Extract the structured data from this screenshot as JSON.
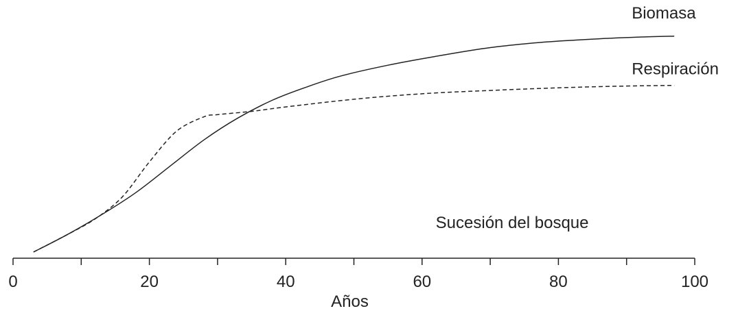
{
  "chart_data": {
    "type": "line",
    "title": "",
    "xlabel": "Años",
    "ylabel": "",
    "xlim": [
      0,
      100
    ],
    "ylim": [
      0,
      100
    ],
    "x_ticks": [
      0,
      20,
      40,
      60,
      80,
      100
    ],
    "x_minor_ticks": [
      10,
      30,
      50,
      70,
      90
    ],
    "grid": false,
    "annotation": "Sucesión del bosque",
    "series": [
      {
        "name": "Biomasa",
        "style": "solid",
        "color": "#222222",
        "points": [
          [
            3,
            0
          ],
          [
            8,
            8
          ],
          [
            13,
            17
          ],
          [
            18,
            27
          ],
          [
            23,
            39
          ],
          [
            28,
            51
          ],
          [
            33,
            61
          ],
          [
            38,
            69
          ],
          [
            43,
            75
          ],
          [
            48,
            80
          ],
          [
            55,
            85
          ],
          [
            62,
            89
          ],
          [
            70,
            93
          ],
          [
            78,
            95.5
          ],
          [
            86,
            97
          ],
          [
            93,
            97.9
          ],
          [
            97,
            98.2
          ]
        ]
      },
      {
        "name": "Respiración",
        "style": "dashed",
        "color": "#222222",
        "points": [
          [
            3,
            0
          ],
          [
            8,
            8
          ],
          [
            12,
            15
          ],
          [
            16,
            25
          ],
          [
            20,
            41
          ],
          [
            24,
            55
          ],
          [
            28,
            61.5
          ],
          [
            30,
            62.5
          ],
          [
            35,
            64
          ],
          [
            40,
            66
          ],
          [
            50,
            69.5
          ],
          [
            60,
            72
          ],
          [
            70,
            73.5
          ],
          [
            80,
            74.7
          ],
          [
            90,
            75.5
          ],
          [
            97,
            75.8
          ]
        ]
      }
    ]
  }
}
